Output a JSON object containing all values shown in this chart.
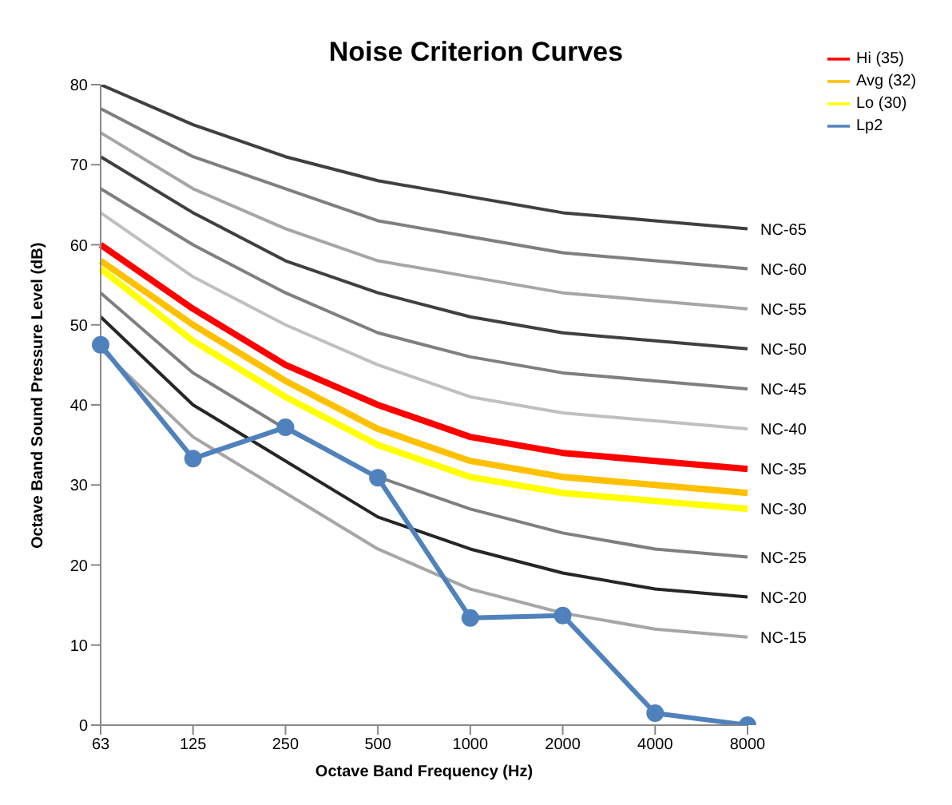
{
  "chart_data": {
    "type": "line",
    "title": "Noise Criterion Curves",
    "xlabel": "Octave Band Frequency (Hz)",
    "ylabel": "Octave Band Sound Pressure Level (dB)",
    "categories": [
      "63",
      "125",
      "250",
      "500",
      "1000",
      "2000",
      "4000",
      "8000"
    ],
    "ylim": [
      0,
      80
    ],
    "yticks": [
      0,
      10,
      20,
      30,
      40,
      50,
      60,
      70,
      80
    ],
    "legend": "top right",
    "marker": "none",
    "annotations": [
      {
        "text": "NC-65",
        "x": "8000",
        "y": 62
      },
      {
        "text": "NC-60",
        "x": "8000",
        "y": 57
      },
      {
        "text": "NC-55",
        "x": "8000",
        "y": 52
      },
      {
        "text": "NC-50",
        "x": "8000",
        "y": 47
      },
      {
        "text": "NC-45",
        "x": "8000",
        "y": 42
      },
      {
        "text": "NC-40",
        "x": "8000",
        "y": 37
      },
      {
        "text": "NC-35",
        "x": "8000",
        "y": 32
      },
      {
        "text": "NC-30",
        "x": "8000",
        "y": 27
      },
      {
        "text": "NC-25",
        "x": "8000",
        "y": 21
      },
      {
        "text": "NC-20",
        "x": "8000",
        "y": 16
      },
      {
        "text": "NC-15",
        "x": "8000",
        "y": 11
      }
    ],
    "series": [
      {
        "color": "#404040",
        "values": [
          80,
          75,
          71,
          68,
          66,
          64,
          63,
          62
        ]
      },
      {
        "color": "#7f7f7f",
        "values": [
          77,
          71,
          67,
          63,
          61,
          59,
          58,
          57
        ]
      },
      {
        "color": "#a6a6a6",
        "values": [
          74,
          67,
          62,
          58,
          56,
          54,
          53,
          52
        ]
      },
      {
        "color": "#404040",
        "values": [
          71,
          64,
          58,
          54,
          51,
          49,
          48,
          47
        ]
      },
      {
        "color": "#7f7f7f",
        "values": [
          67,
          60,
          54,
          49,
          46,
          44,
          43,
          42
        ]
      },
      {
        "color": "#bfbfbf",
        "values": [
          64,
          56,
          50,
          45,
          41,
          39,
          38,
          37
        ]
      },
      {
        "color": "#7f7f7f",
        "values": [
          54,
          44,
          37,
          31,
          27,
          24,
          22,
          21
        ]
      },
      {
        "color": "#262626",
        "values": [
          51,
          40,
          33,
          26,
          22,
          19,
          17,
          16
        ]
      },
      {
        "color": "#a6a6a6",
        "values": [
          47,
          36,
          29,
          22,
          17,
          14,
          12,
          11
        ]
      },
      {
        "name": "Hi (35)",
        "color": "#ff0000",
        "values": [
          60,
          52,
          45,
          40,
          36,
          34,
          33,
          32
        ]
      },
      {
        "name": "Avg (32)",
        "color": "#ffc000",
        "values": [
          58,
          50,
          43,
          37,
          33,
          31,
          30,
          29
        ]
      },
      {
        "name": "Lo (30)",
        "color": "#ffff00",
        "values": [
          57,
          48,
          41,
          35,
          31,
          29,
          28,
          27
        ]
      },
      {
        "name": "Lp2",
        "color": "#4f81bd",
        "marker": "circle",
        "values": [
          47.5,
          33.3,
          37.2,
          30.9,
          13.4,
          13.7,
          1.5,
          0
        ]
      }
    ]
  }
}
